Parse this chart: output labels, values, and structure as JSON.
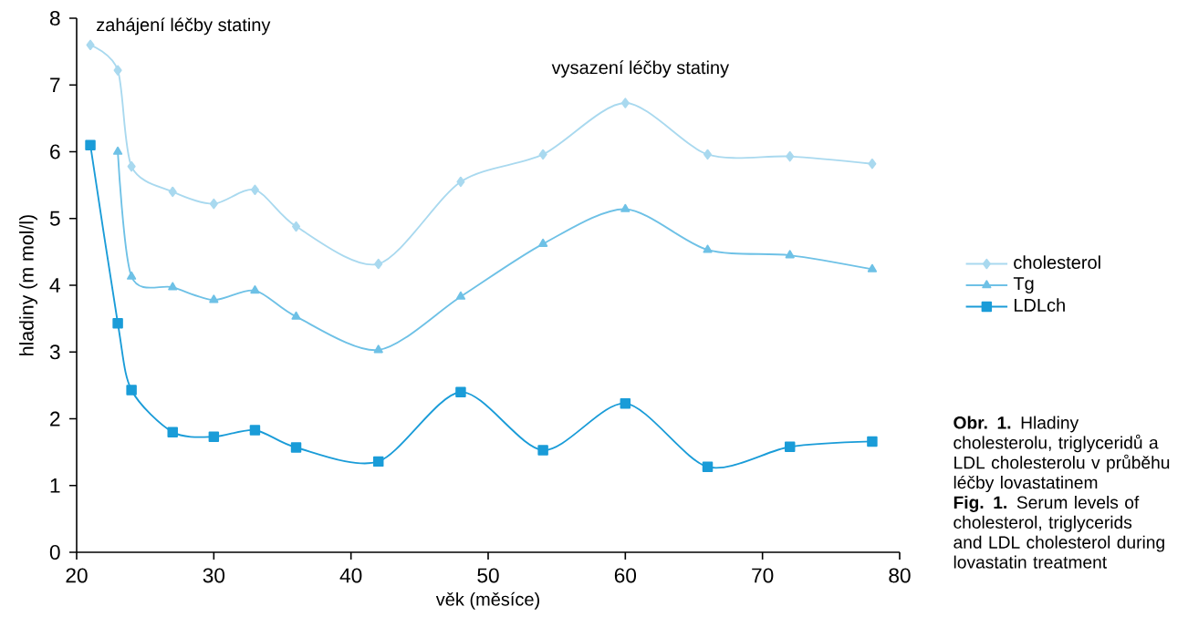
{
  "chart_data": {
    "type": "line",
    "xlabel": "věk (měsíce)",
    "ylabel": "hladiny (m mol/l)",
    "x": [
      21,
      23,
      24,
      27,
      30,
      33,
      36,
      42,
      48,
      54,
      60,
      66,
      72,
      78
    ],
    "series": [
      {
        "name": "cholesterol",
        "color": "#a9d9ef",
        "marker": "diamond",
        "values": [
          7.6,
          7.22,
          5.78,
          5.4,
          5.22,
          5.43,
          4.88,
          4.32,
          5.55,
          5.96,
          6.73,
          5.96,
          5.93,
          5.82
        ]
      },
      {
        "name": "Tg",
        "color": "#6ec1e6",
        "marker": "triangle",
        "values": [
          null,
          6.0,
          4.13,
          3.97,
          3.78,
          3.92,
          3.53,
          3.03,
          3.83,
          4.62,
          5.14,
          4.53,
          4.45,
          4.24
        ]
      },
      {
        "name": "LDLch",
        "color": "#1a9cd8",
        "marker": "square",
        "values": [
          6.1,
          3.43,
          2.43,
          1.8,
          1.73,
          1.83,
          1.57,
          1.36,
          2.4,
          1.53,
          2.23,
          1.28,
          1.58,
          1.66
        ]
      }
    ],
    "xlim": [
      20,
      80
    ],
    "xticks": [
      20,
      30,
      40,
      50,
      60,
      70,
      80
    ],
    "ylim": [
      0,
      8
    ],
    "yticks": [
      0,
      1,
      2,
      3,
      4,
      5,
      6,
      7,
      8
    ],
    "grid": false,
    "legend": "right",
    "line_style": "solid",
    "annotations": [
      "zahájení léčby statiny",
      "vysazení léčby statiny",
      "**Obr. 1.** Hladiny cholesterolu, triglyceridů a LDL cholesterolu v průběhu léčby lovastatinem",
      "**Fig. 1.** Serum levels of cholesterol, triglycerids and LDL cholesterol during lovastatin treatment"
    ]
  }
}
